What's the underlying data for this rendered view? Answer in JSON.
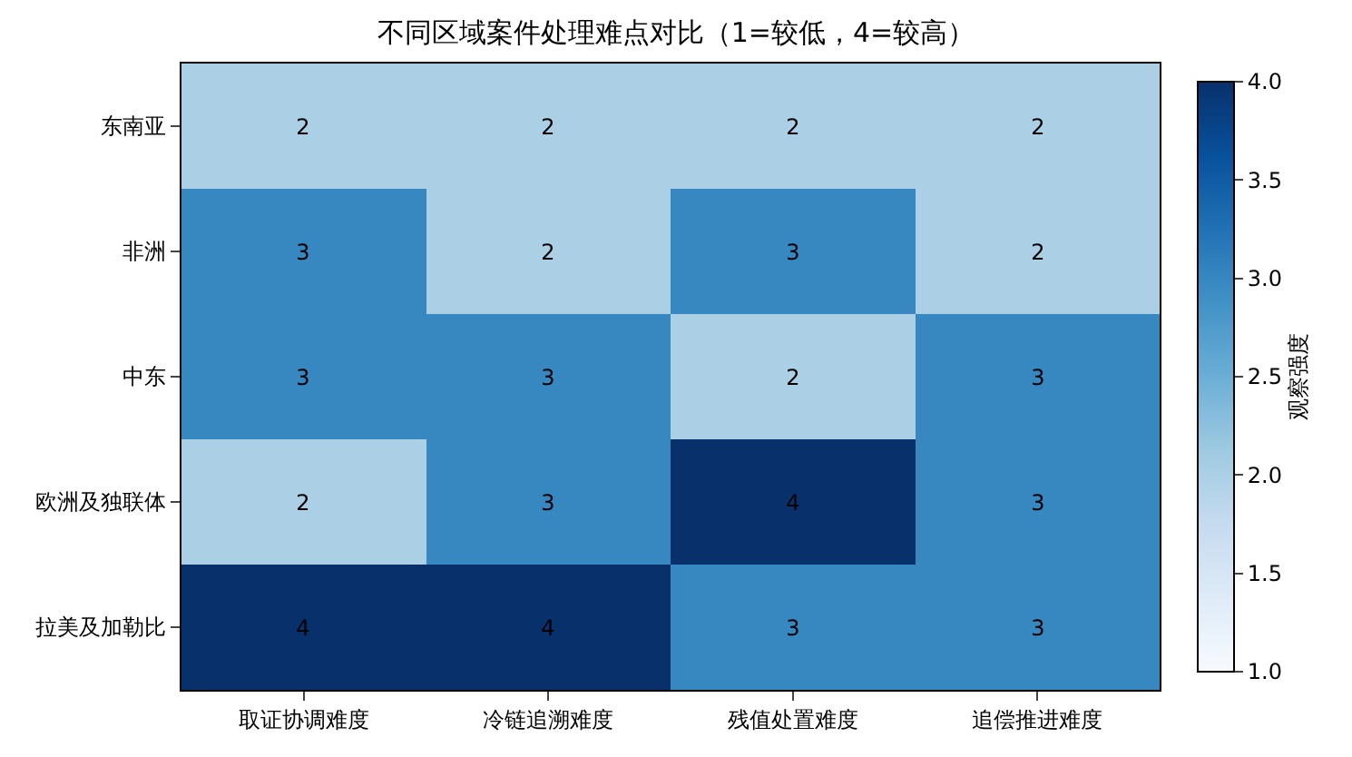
{
  "chart_data": {
    "type": "heatmap",
    "title": "不同区域案件处理难点对比（1=较低，4=较高）",
    "categories": [
      "取证协调难度",
      "冷链追溯难度",
      "残值处置难度",
      "追偿推进难度"
    ],
    "y_categories": [
      "东南亚",
      "非洲",
      "中东",
      "欧洲及独联体",
      "拉美及加勒比"
    ],
    "cells": [
      [
        2,
        2,
        2,
        2
      ],
      [
        3,
        2,
        3,
        2
      ],
      [
        3,
        3,
        2,
        3
      ],
      [
        2,
        3,
        4,
        3
      ],
      [
        4,
        4,
        3,
        3
      ]
    ],
    "clim": [
      1,
      4
    ],
    "cticks": [
      {
        "value": 1,
        "label": "1.0"
      },
      {
        "value": 1.5,
        "label": "1.5"
      },
      {
        "value": 2,
        "label": "2.0"
      },
      {
        "value": 2.5,
        "label": "2.5"
      },
      {
        "value": 3,
        "label": "3.0"
      },
      {
        "value": 3.5,
        "label": "3.5"
      },
      {
        "value": 4,
        "label": "4.0"
      }
    ],
    "clabel": "观察强度",
    "data_labels": true
  }
}
